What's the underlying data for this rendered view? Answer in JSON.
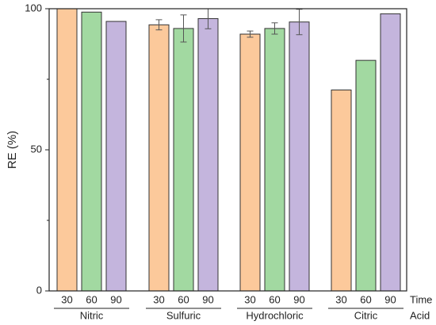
{
  "chart_data": {
    "type": "bar",
    "ylabel": "RE (%)",
    "ylim": [
      0,
      100
    ],
    "yticks": [
      0,
      50,
      100
    ],
    "x_level1_name": "Time",
    "x_level2_name": "Acid",
    "groups": [
      {
        "name": "Nitric",
        "bars": [
          {
            "time": "30",
            "value": 100,
            "err": 0
          },
          {
            "time": "60",
            "value": 98.8,
            "err": 0
          },
          {
            "time": "90",
            "value": 95.5,
            "err": 0
          }
        ]
      },
      {
        "name": "Sulfuric",
        "bars": [
          {
            "time": "30",
            "value": 94.3,
            "err": 1.8
          },
          {
            "time": "60",
            "value": 93.0,
            "err": 4.8
          },
          {
            "time": "90",
            "value": 96.5,
            "err": 3.6
          }
        ]
      },
      {
        "name": "Hydrochloric",
        "bars": [
          {
            "time": "30",
            "value": 91.0,
            "err": 1.1
          },
          {
            "time": "60",
            "value": 93.0,
            "err": 2.0
          },
          {
            "time": "90",
            "value": 95.3,
            "err": 4.5
          }
        ]
      },
      {
        "name": "Citric",
        "bars": [
          {
            "time": "30",
            "value": 71.2,
            "err": 0
          },
          {
            "time": "60",
            "value": 81.7,
            "err": 0
          },
          {
            "time": "90",
            "value": 98.2,
            "err": 0
          }
        ]
      }
    ],
    "colors": {
      "30": "#fcc99b",
      "60": "#a2d9a1",
      "90": "#c4b5dd"
    },
    "stroke": "#333333"
  }
}
